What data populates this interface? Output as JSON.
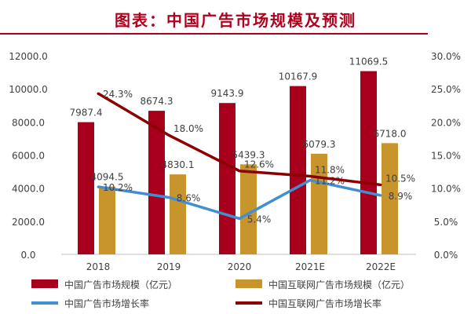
{
  "title": "图表：中国广告市场规模及预测",
  "chart_data": {
    "type": "bar+line",
    "categories": [
      "2018",
      "2019",
      "2020",
      "2021E",
      "2022E"
    ],
    "left_axis": {
      "ylim": [
        0,
        12000
      ],
      "ticks": [
        "0.0",
        "2000.0",
        "4000.0",
        "6000.0",
        "8000.0",
        "10000.0",
        "12000.0"
      ]
    },
    "right_axis": {
      "ylim": [
        0,
        30
      ],
      "ticks": [
        "0.0%",
        "5.0%",
        "10.0%",
        "15.0%",
        "20.0%",
        "25.0%",
        "30.0%"
      ]
    },
    "legend_position": "bottom",
    "grid": false,
    "series": [
      {
        "name": "中国广告市场规模（亿元）",
        "type": "bar",
        "axis": "left",
        "color": "#a8001c",
        "values": [
          7987.4,
          8674.3,
          9143.9,
          10167.9,
          11069.5
        ],
        "labels": [
          "7987.4",
          "8674.3",
          "9143.9",
          "10167.9",
          "11069.5"
        ]
      },
      {
        "name": "中国互联网广告市场规模（亿元）",
        "type": "bar",
        "axis": "left",
        "color": "#c8952c",
        "values": [
          4094.5,
          4830.1,
          5439.3,
          6079.3,
          6718.0
        ],
        "labels": [
          "4094.5",
          "4830.1",
          "5439.3",
          "6079.3",
          "6718.0"
        ]
      },
      {
        "name": "中国广告市场增长率",
        "type": "line",
        "axis": "right",
        "color": "#3f8fd2",
        "values": [
          10.2,
          8.6,
          5.4,
          11.2,
          8.9
        ],
        "labels": [
          "10.2%",
          "8.6%",
          "5.4%",
          "11.2%",
          "8.9%"
        ]
      },
      {
        "name": "中国互联网广告市场增长率",
        "type": "line",
        "axis": "right",
        "color": "#8b0000",
        "values": [
          24.3,
          18.0,
          12.6,
          11.8,
          10.5
        ],
        "labels": [
          "24.3%",
          "18.0%",
          "12.6%",
          "11.8%",
          "10.5%"
        ]
      }
    ]
  }
}
